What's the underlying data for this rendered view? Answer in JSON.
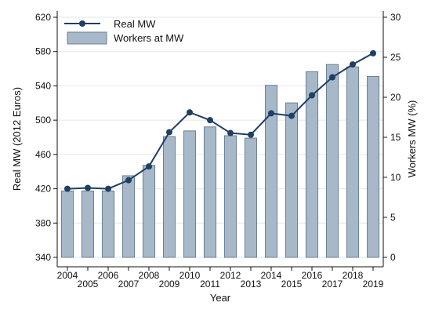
{
  "chart_data": {
    "type": "bar+line",
    "x": [
      "2004",
      "2005",
      "2006",
      "2007",
      "2008",
      "2009",
      "2010",
      "2011",
      "2012",
      "2013",
      "2014",
      "2015",
      "2016",
      "2017",
      "2018",
      "2019"
    ],
    "xlabel": "Year",
    "ylabel_left": "Real MW (2012 Euros)",
    "ylabel_right": "Workers MW (%)",
    "ylim_left": [
      340,
      620
    ],
    "yticks_left": [
      340,
      380,
      420,
      460,
      500,
      540,
      580,
      620
    ],
    "ylim_right": [
      0,
      30
    ],
    "yticks_right": [
      0,
      5,
      10,
      15,
      20,
      25,
      30
    ],
    "grid": true,
    "legend_position": "top-left",
    "series": [
      {
        "name": "Real MW",
        "type": "line",
        "axis": "left",
        "color": "#1f3f63",
        "values": [
          420,
          421,
          420,
          430,
          446,
          486,
          509,
          500,
          485,
          483,
          508,
          505,
          529,
          550,
          565,
          578
        ]
      },
      {
        "name": "Workers at MW",
        "type": "bar",
        "axis": "right",
        "color": "#a7b9c9",
        "edge_color": "#6b7f94",
        "values": [
          8.3,
          8.3,
          8.3,
          10.2,
          11.5,
          15.1,
          15.8,
          16.3,
          15.2,
          14.9,
          21.5,
          19.3,
          23.2,
          24.1,
          23.8,
          22.6
        ]
      }
    ]
  }
}
